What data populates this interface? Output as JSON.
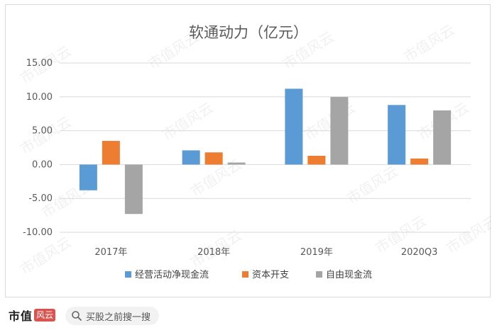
{
  "footer": {
    "brand": "市值",
    "brand_mark": "风云",
    "search_placeholder": "买股之前搜一搜"
  },
  "watermark_text": "市值风云",
  "chart_data": {
    "type": "bar",
    "title": "软通动力（亿元）",
    "categories": [
      "2017年",
      "2018年",
      "2019年",
      "2020Q3"
    ],
    "series": [
      {
        "name": "经营活动净现金流",
        "color": "#5b9bd5",
        "values": [
          -3.8,
          2.1,
          11.2,
          8.8
        ]
      },
      {
        "name": "资本开支",
        "color": "#ed7d31",
        "values": [
          3.5,
          1.8,
          1.3,
          0.9
        ]
      },
      {
        "name": "自由现金流",
        "color": "#a5a5a5",
        "values": [
          -7.3,
          0.3,
          10.0,
          8.0
        ]
      }
    ],
    "yticks": [
      "15.00",
      "10.00",
      "5.00",
      "0.00",
      "-5.00",
      "-10.00"
    ],
    "ylim": [
      -10,
      15
    ],
    "grid": true,
    "legend_position": "bottom"
  }
}
